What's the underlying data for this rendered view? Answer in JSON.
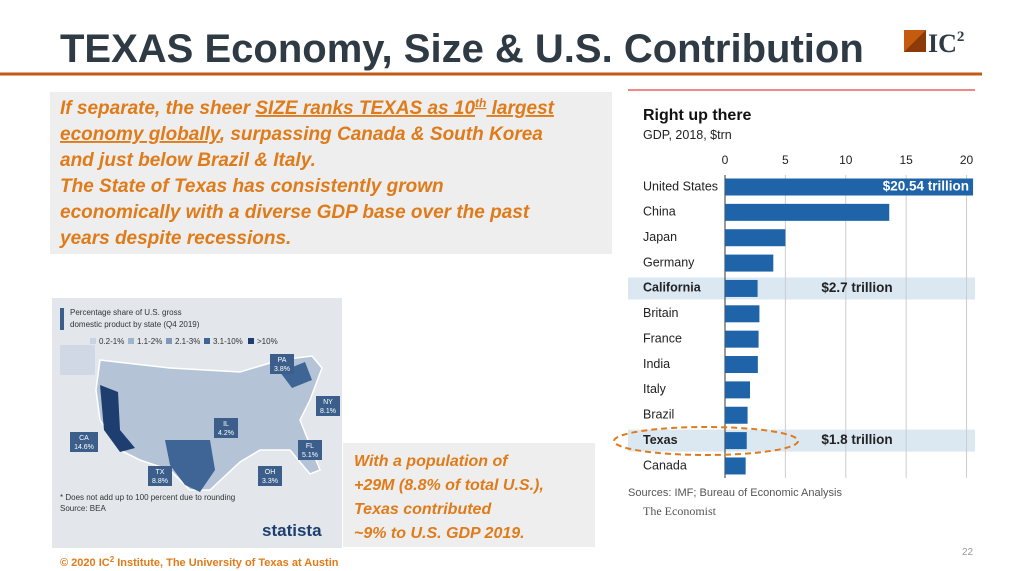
{
  "slide": {
    "title": "TEXAS Economy, Size & U.S. Contribution",
    "logo": {
      "text": "IC",
      "sup": "2"
    },
    "intro": {
      "lines": [
        [
          "If separate, the sheer ",
          "SIZE ranks TEXAS as 10",
          "th",
          " largest"
        ],
        [
          "economy globally",
          ", surpassing Canada & South Korea"
        ],
        [
          "and just below Brazil & Italy."
        ],
        [
          "The State of Texas has consistently grown"
        ],
        [
          "economically with a diverse GDP base over the past"
        ],
        [
          "years despite recessions."
        ]
      ]
    },
    "callout": [
      "With a population of",
      "+29M (8.8% of total U.S.),",
      "Texas contributed",
      "~9% to U.S. GDP 2019."
    ],
    "footer": [
      "© 2020 IC",
      "2",
      " Institute, The University of Texas at Austin"
    ],
    "page_number": "22"
  },
  "map": {
    "title": [
      "Percentage share of U.S. gross",
      "domestic product by state (Q4 2019)"
    ],
    "legend": [
      "0.2-1%",
      "1.1-2%",
      "2.1-3%",
      "3.1-10%",
      ">10%"
    ],
    "states": [
      {
        "code": "CA",
        "share": "14.6%"
      },
      {
        "code": "TX",
        "share": "8.8%"
      },
      {
        "code": "NY",
        "share": "8.1%"
      },
      {
        "code": "PA",
        "share": "3.8%"
      },
      {
        "code": "IL",
        "share": "4.2%"
      },
      {
        "code": "FL",
        "share": "5.1%"
      },
      {
        "code": "OH",
        "share": "3.3%"
      }
    ],
    "note": "* Does not add up to 100 percent due to rounding",
    "source": "Source: BEA",
    "brand": "statista"
  },
  "chart_data": {
    "type": "bar",
    "orientation": "horizontal",
    "title": "Right up there",
    "subtitle": "GDP, 2018, $trn",
    "categories": [
      "United States",
      "China",
      "Japan",
      "Germany",
      "California",
      "Britain",
      "France",
      "India",
      "Italy",
      "Brazil",
      "Texas",
      "Canada"
    ],
    "values": [
      20.54,
      13.6,
      5.0,
      4.0,
      2.7,
      2.85,
      2.78,
      2.72,
      2.07,
      1.87,
      1.8,
      1.71
    ],
    "value_labels": [
      "$20.54 trillion",
      null,
      null,
      null,
      "$2.7 trillion",
      null,
      null,
      null,
      null,
      null,
      "$1.8 trillion",
      null
    ],
    "highlight": [
      4,
      10
    ],
    "color": "#1f64a8",
    "xlim": [
      0,
      20.7
    ],
    "xticks": [
      0,
      5,
      10,
      15,
      20
    ],
    "grid": true,
    "source": "Sources: IMF; Bureau of Economic Analysis",
    "brand": "The Economist"
  }
}
